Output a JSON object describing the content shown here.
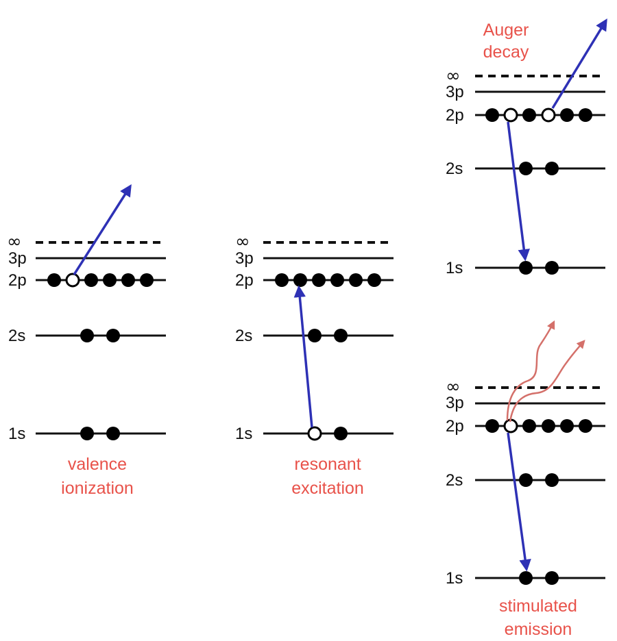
{
  "colors": {
    "caption": "#e8524a",
    "electron_arrow": "#2e31b5",
    "photon_arrow": "#d4706a",
    "ink": "#111111"
  },
  "level_labels": {
    "inf": "∞",
    "p3": "3p",
    "p2": "2p",
    "s2": "2s",
    "s1": "1s"
  },
  "panels": [
    {
      "id": "valence",
      "caption_line1": "valence",
      "caption_line2": "ionization",
      "occupancy": {
        "1s": "●●",
        "2s": "●●",
        "2p": "●○●●●●"
      }
    },
    {
      "id": "resonant",
      "caption_line1": "resonant",
      "caption_line2": "excitation",
      "occupancy": {
        "1s": "○●",
        "2s": "●●",
        "2p": "●●●●●●"
      }
    },
    {
      "id": "auger",
      "caption_line1": "Auger",
      "caption_line2": "decay",
      "occupancy": {
        "1s": "●●",
        "2s": "●●",
        "2p": "●○●○●●"
      }
    },
    {
      "id": "stimulated",
      "caption_line1": "stimulated",
      "caption_line2": "emission",
      "occupancy": {
        "1s": "●●",
        "2s": "●●",
        "2p": "●○●●●●"
      }
    }
  ]
}
